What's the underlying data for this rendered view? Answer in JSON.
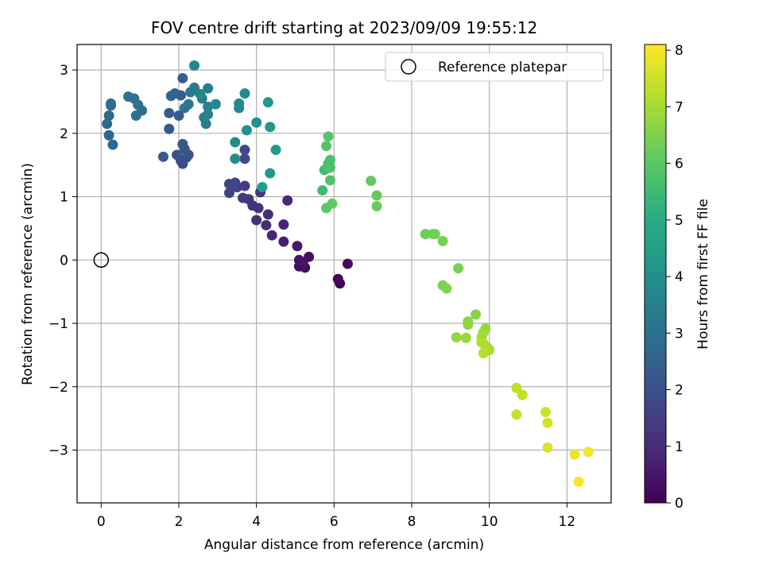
{
  "chart_data": {
    "type": "scatter",
    "title": "FOV centre drift starting at 2023/09/09 19:55:12",
    "xlabel": "Angular distance from reference (arcmin)",
    "ylabel": "Rotation from reference (arcmin)",
    "xlim": [
      -0.6,
      13.2
    ],
    "ylim": [
      -3.8,
      3.4
    ],
    "x_ticks": [
      0,
      2,
      4,
      6,
      8,
      10,
      12
    ],
    "y_ticks": [
      -3,
      -2,
      -1,
      0,
      1,
      2,
      3
    ],
    "x_tick_labels": [
      "0",
      "2",
      "4",
      "6",
      "8",
      "10",
      "12"
    ],
    "y_tick_labels": [
      "−3",
      "−2",
      "−1",
      "0",
      "1",
      "2",
      "3"
    ],
    "grid": true,
    "legend": {
      "position": "top-right",
      "label": "Reference platepar"
    },
    "reference_point": {
      "x": 0,
      "y": 0
    },
    "colorbar": {
      "label": "Hours from first FF file",
      "range": [
        0,
        8.1
      ],
      "ticks": [
        0,
        1,
        2,
        3,
        4,
        5,
        6,
        7,
        8
      ],
      "tick_labels": [
        "0",
        "1",
        "2",
        "3",
        "4",
        "5",
        "6",
        "7",
        "8"
      ],
      "colormap": "viridis"
    },
    "series": [
      {
        "points": [
          [
            6.15,
            -0.37,
            0.05
          ],
          [
            6.1,
            -0.3,
            0.1
          ],
          [
            6.35,
            -0.06,
            0.15
          ],
          [
            5.25,
            -0.12,
            0.25
          ],
          [
            5.1,
            -0.1,
            0.3
          ],
          [
            5.35,
            0.05,
            0.35
          ],
          [
            5.2,
            -0.05,
            0.4
          ],
          [
            5.1,
            0.0,
            0.45
          ],
          [
            5.05,
            0.22,
            0.55
          ],
          [
            4.7,
            0.29,
            0.7
          ],
          [
            4.4,
            0.39,
            0.8
          ],
          [
            4.7,
            0.56,
            0.85
          ],
          [
            4.8,
            0.94,
            0.9
          ],
          [
            4.25,
            0.55,
            1.0
          ],
          [
            4.3,
            0.72,
            1.05
          ],
          [
            4.0,
            0.63,
            1.1
          ],
          [
            4.05,
            0.82,
            1.15
          ],
          [
            3.9,
            0.86,
            1.2
          ],
          [
            4.1,
            1.07,
            1.25
          ],
          [
            3.8,
            0.96,
            1.3
          ],
          [
            3.65,
            0.98,
            1.35
          ],
          [
            3.7,
            1.17,
            1.45
          ],
          [
            3.5,
            1.15,
            1.55
          ],
          [
            3.3,
            1.06,
            1.6
          ],
          [
            3.3,
            1.2,
            1.65
          ],
          [
            3.45,
            1.22,
            1.7
          ],
          [
            3.7,
            1.6,
            1.75
          ],
          [
            3.7,
            1.74,
            1.8
          ],
          [
            2.1,
            1.52,
            1.85
          ],
          [
            2.05,
            1.57,
            1.9
          ],
          [
            2.2,
            1.62,
            1.95
          ],
          [
            2.25,
            1.66,
            2.0
          ],
          [
            1.95,
            1.66,
            2.05
          ],
          [
            2.15,
            1.75,
            2.1
          ],
          [
            2.1,
            1.83,
            2.15
          ],
          [
            1.6,
            1.63,
            2.2
          ],
          [
            1.75,
            2.07,
            2.25
          ],
          [
            1.75,
            2.32,
            2.3
          ],
          [
            2.0,
            2.28,
            2.35
          ],
          [
            2.05,
            2.6,
            2.4
          ],
          [
            2.1,
            2.87,
            2.45
          ],
          [
            1.9,
            2.63,
            2.5
          ],
          [
            1.8,
            2.59,
            2.55
          ],
          [
            0.3,
            1.82,
            2.6
          ],
          [
            0.2,
            1.97,
            2.65
          ],
          [
            0.15,
            2.15,
            2.7
          ],
          [
            0.2,
            2.28,
            2.75
          ],
          [
            0.25,
            2.44,
            2.8
          ],
          [
            0.25,
            2.47,
            2.85
          ],
          [
            0.9,
            2.28,
            2.9
          ],
          [
            1.05,
            2.36,
            2.95
          ],
          [
            0.95,
            2.45,
            3.0
          ],
          [
            0.85,
            2.55,
            3.05
          ],
          [
            0.7,
            2.58,
            3.1
          ],
          [
            2.15,
            2.4,
            3.15
          ],
          [
            2.25,
            2.46,
            3.2
          ],
          [
            2.3,
            2.65,
            3.25
          ],
          [
            2.4,
            2.72,
            3.3
          ],
          [
            2.6,
            2.55,
            3.35
          ],
          [
            2.75,
            2.71,
            3.4
          ],
          [
            2.7,
            2.15,
            3.45
          ],
          [
            2.65,
            2.25,
            3.5
          ],
          [
            2.75,
            2.3,
            3.55
          ],
          [
            2.75,
            2.42,
            3.6
          ],
          [
            2.95,
            2.46,
            3.65
          ],
          [
            2.55,
            2.62,
            3.7
          ],
          [
            2.4,
            3.07,
            3.75
          ],
          [
            3.55,
            2.4,
            3.8
          ],
          [
            3.55,
            2.47,
            3.85
          ],
          [
            3.7,
            2.63,
            3.9
          ],
          [
            3.45,
            1.86,
            3.95
          ],
          [
            3.45,
            1.6,
            4.0
          ],
          [
            3.75,
            2.05,
            4.05
          ],
          [
            4.0,
            2.17,
            4.15
          ],
          [
            4.3,
            2.49,
            4.25
          ],
          [
            4.35,
            2.1,
            4.35
          ],
          [
            4.5,
            1.74,
            4.4
          ],
          [
            4.35,
            1.37,
            4.45
          ],
          [
            4.15,
            1.15,
            4.5
          ],
          [
            5.7,
            1.1,
            5.55
          ],
          [
            5.75,
            1.42,
            5.6
          ],
          [
            5.8,
            1.44,
            5.65
          ],
          [
            5.85,
            1.52,
            5.7
          ],
          [
            5.9,
            1.58,
            5.75
          ],
          [
            5.9,
            1.46,
            5.8
          ],
          [
            5.9,
            1.26,
            5.85
          ],
          [
            5.8,
            1.8,
            5.9
          ],
          [
            5.85,
            1.95,
            5.95
          ],
          [
            5.8,
            0.82,
            6.0
          ],
          [
            5.95,
            0.89,
            6.05
          ],
          [
            6.95,
            1.25,
            6.1
          ],
          [
            7.1,
            1.02,
            6.15
          ],
          [
            7.1,
            0.85,
            6.2
          ],
          [
            8.35,
            0.41,
            6.25
          ],
          [
            8.55,
            0.41,
            6.3
          ],
          [
            8.6,
            0.41,
            6.35
          ],
          [
            8.8,
            0.3,
            6.4
          ],
          [
            9.2,
            -0.13,
            6.45
          ],
          [
            8.8,
            -0.4,
            6.5
          ],
          [
            8.9,
            -0.45,
            6.55
          ],
          [
            9.65,
            -0.86,
            6.6
          ],
          [
            9.45,
            -0.97,
            6.65
          ],
          [
            9.45,
            -1.02,
            6.7
          ],
          [
            9.15,
            -1.22,
            6.75
          ],
          [
            9.4,
            -1.23,
            6.8
          ],
          [
            9.9,
            -1.08,
            6.85
          ],
          [
            9.85,
            -1.14,
            6.9
          ],
          [
            9.8,
            -1.22,
            6.95
          ],
          [
            9.85,
            -1.32,
            7.0
          ],
          [
            9.95,
            -1.38,
            7.05
          ],
          [
            10.0,
            -1.42,
            7.1
          ],
          [
            9.8,
            -1.3,
            7.15
          ],
          [
            9.85,
            -1.47,
            7.2
          ],
          [
            10.7,
            -2.02,
            7.3
          ],
          [
            10.85,
            -2.13,
            7.35
          ],
          [
            10.7,
            -2.44,
            7.4
          ],
          [
            11.45,
            -2.4,
            7.5
          ],
          [
            11.5,
            -2.57,
            7.55
          ],
          [
            11.5,
            -2.96,
            7.65
          ],
          [
            12.2,
            -3.07,
            7.9
          ],
          [
            12.55,
            -3.03,
            8.0
          ],
          [
            12.3,
            -3.5,
            8.1
          ]
        ]
      }
    ]
  }
}
